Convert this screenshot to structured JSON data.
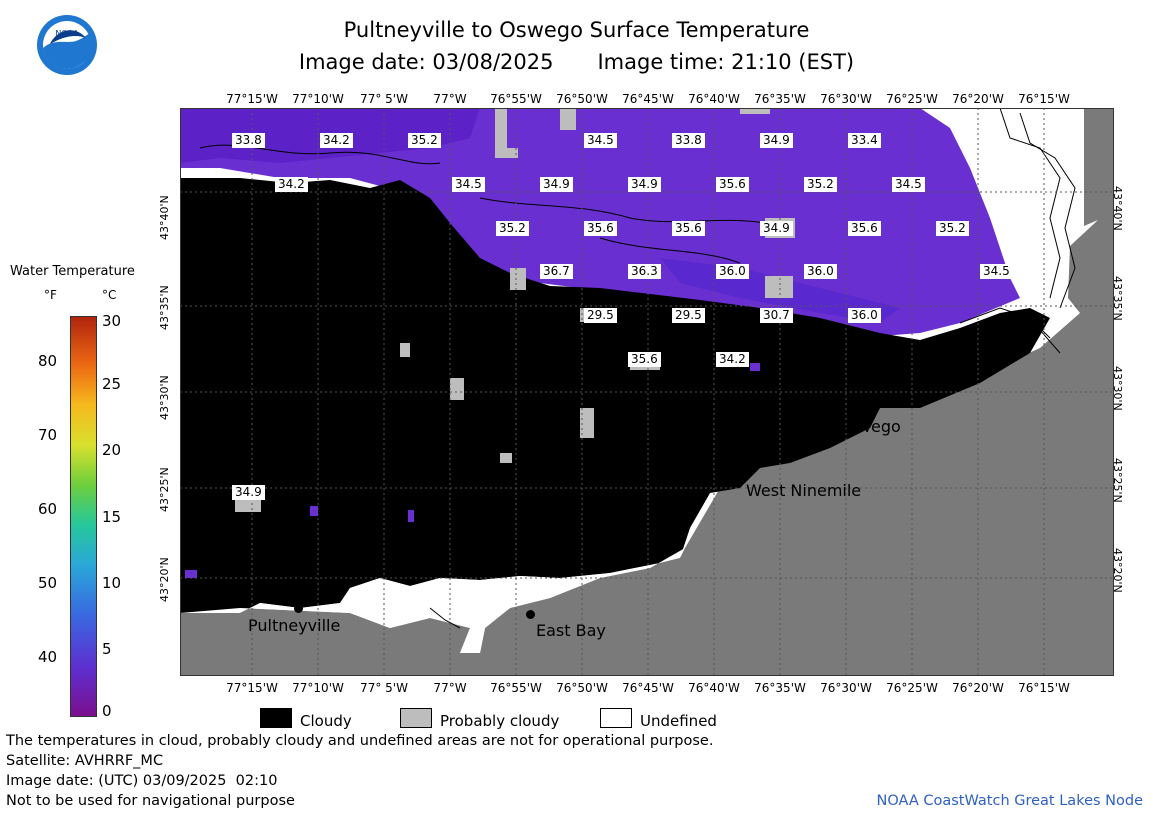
{
  "header": {
    "title": "Pultneyville to Oswego Surface Temperature",
    "subtitle_date_label": "Image date: 03/08/2025",
    "subtitle_time_label": "Image time: 21:10 (EST)"
  },
  "map": {
    "longitude_ticks": [
      "77°15'W",
      "77°10'W",
      "77° 5'W",
      "77°W",
      "76°55'W",
      "76°50'W",
      "76°45'W",
      "76°40'W",
      "76°35'W",
      "76°30'W",
      "76°25'W",
      "76°20'W",
      "76°15'W"
    ],
    "latitude_ticks": [
      "43°40'N",
      "43°35'N",
      "43°30'N",
      "43°25'N",
      "43°20'N"
    ],
    "temperature_labels": [
      "33.8",
      "34.2",
      "35.2",
      "34.5",
      "33.8",
      "34.9",
      "33.4",
      "34.2",
      "34.5",
      "34.9",
      "34.9",
      "35.6",
      "35.2",
      "34.5",
      "35.2",
      "35.6",
      "35.6",
      "34.9",
      "35.6",
      "35.2",
      "36.7",
      "36.3",
      "36.0",
      "36.0",
      "34.5",
      "29.5",
      "29.5",
      "30.7",
      "36.0",
      "35.6",
      "34.2",
      "34.9"
    ],
    "cities": [
      "Oswego",
      "West Ninemile",
      "Pultneyville",
      "East Bay"
    ],
    "colors": {
      "land": "#7a7a7a",
      "cloud": "#000000",
      "water": "#6a2fd0",
      "undefined": "#ffffff",
      "probably_cloudy": "#bdbdbd"
    }
  },
  "colorbar": {
    "title": "Water Temperature",
    "unit_f": "°F",
    "unit_c": "°C",
    "f_ticks": [
      "80",
      "70",
      "60",
      "50",
      "40"
    ],
    "c_ticks": [
      "30",
      "25",
      "20",
      "15",
      "10",
      "5",
      "0"
    ],
    "range_c": [
      0,
      30
    ]
  },
  "legend": {
    "cloudy": "Cloudy",
    "probably_cloudy": "Probably cloudy",
    "undefined": "Undefined"
  },
  "notes": {
    "disclaimer": "The temperatures in cloud, probably cloudy and undefined areas are not for operational purpose.",
    "satellite": "Satellite: AVHRRF_MC",
    "utc_date": "Image date: (UTC) 03/09/2025  02:10",
    "navigation": "Not to be used for navigational purpose",
    "credit": "NOAA CoastWatch Great Lakes Node"
  }
}
